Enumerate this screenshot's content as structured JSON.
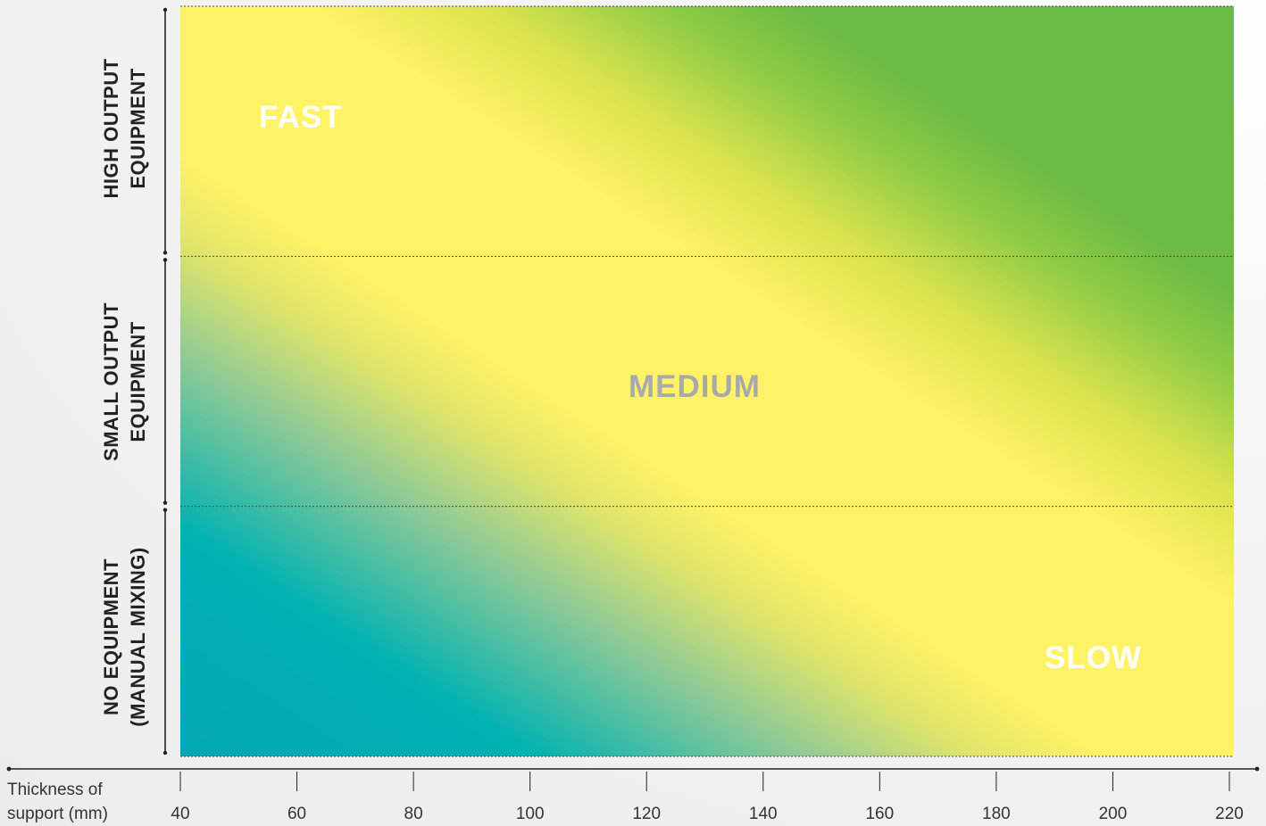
{
  "chart_data": {
    "type": "heatmap",
    "xlabel": [
      "Thickness of",
      "support (mm)"
    ],
    "xlim": [
      40,
      220
    ],
    "x_ticks": [
      40,
      60,
      80,
      100,
      120,
      140,
      160,
      180,
      200,
      220
    ],
    "y_categories": [
      {
        "line1": "HIGH OUTPUT",
        "line2": "EQUIPMENT"
      },
      {
        "line1": "SMALL OUTPUT",
        "line2": "EQUIPMENT"
      },
      {
        "line1": "NO EQUIPMENT",
        "line2": "(MANUAL MIXING)"
      }
    ],
    "regions": {
      "fast": "FAST",
      "medium": "MEDIUM",
      "slow": "SLOW"
    },
    "colors": {
      "fast": "#03a7b7",
      "medium": "#fff266",
      "slow": "#6cbb44",
      "medium_label": "#a7a9ac"
    },
    "grid": false
  }
}
